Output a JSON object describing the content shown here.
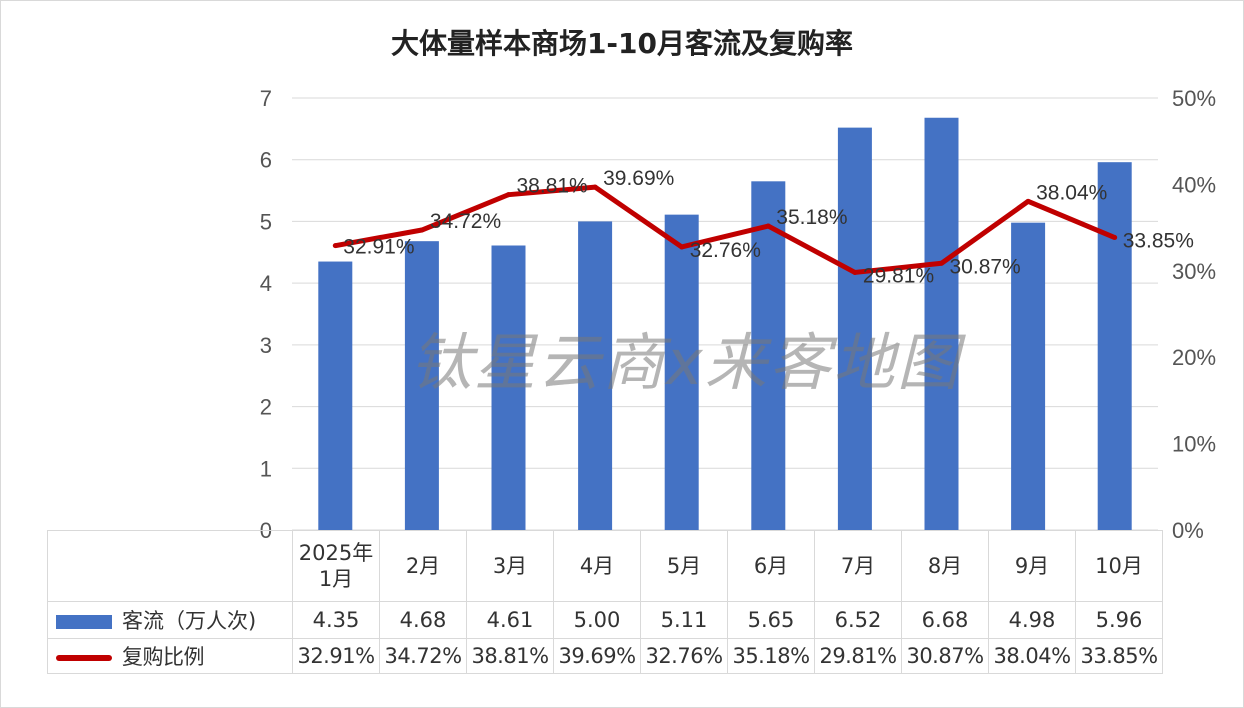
{
  "chart_data": {
    "type": "bar+line",
    "title": "大体量样本商场1-10月客流及复购率",
    "categories": [
      "2025年\n1月",
      "2月",
      "3月",
      "4月",
      "5月",
      "6月",
      "7月",
      "8月",
      "9月",
      "10月"
    ],
    "series": [
      {
        "name": "客流（万人次)",
        "type": "bar",
        "axis": "left",
        "color": "#4472c4",
        "values": [
          4.35,
          4.68,
          4.61,
          5.0,
          5.11,
          5.65,
          6.52,
          6.68,
          4.98,
          5.96
        ],
        "labels": [
          "4.35",
          "4.68",
          "4.61",
          "5.00",
          "5.11",
          "5.65",
          "6.52",
          "6.68",
          "4.98",
          "5.96"
        ]
      },
      {
        "name": "复购比例",
        "type": "line",
        "axis": "right",
        "color": "#c00000",
        "values": [
          32.91,
          34.72,
          38.81,
          39.69,
          32.76,
          35.18,
          29.81,
          30.87,
          38.04,
          33.85
        ],
        "labels": [
          "32.91%",
          "34.72%",
          "38.81%",
          "39.69%",
          "32.76%",
          "35.18%",
          "29.81%",
          "30.87%",
          "38.04%",
          "33.85%"
        ]
      }
    ],
    "y_left": {
      "range": [
        0,
        7
      ],
      "ticks": [
        "0",
        "1",
        "2",
        "3",
        "4",
        "5",
        "6",
        "7"
      ]
    },
    "y_right": {
      "range": [
        0,
        50
      ],
      "ticks": [
        "0%",
        "10%",
        "20%",
        "30%",
        "40%",
        "50%"
      ]
    },
    "grid": true,
    "legend": "data-table-bottom"
  },
  "watermark": "钛星云商x来客地图"
}
